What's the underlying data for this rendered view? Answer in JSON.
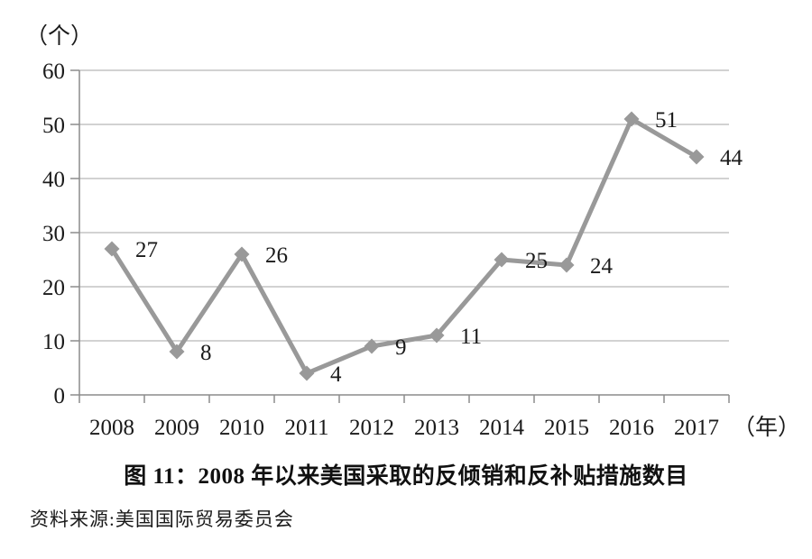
{
  "figure": {
    "title": "图 11：2008 年以来美国采取的反倾销和反补贴措施数目",
    "source": "资料来源:美国国际贸易委员会"
  },
  "chart_data": {
    "type": "line",
    "title": "图 11：2008 年以来美国采取的反倾销和反补贴措施数目",
    "source": "资料来源:美国国际贸易委员会",
    "categories": [
      "2008",
      "2009",
      "2010",
      "2011",
      "2012",
      "2013",
      "2014",
      "2015",
      "2016",
      "2017"
    ],
    "values": [
      27,
      8,
      26,
      4,
      9,
      11,
      25,
      24,
      51,
      44
    ],
    "data_labels": [
      "27",
      "8",
      "26",
      "4",
      "9",
      "11",
      "25",
      "24",
      "51",
      "44"
    ],
    "x_unit": "（年）",
    "y_unit": "（个）",
    "xlabel": "",
    "ylabel": "",
    "ylim": [
      0,
      60
    ],
    "yticks": [
      "0",
      "10",
      "20",
      "30",
      "40",
      "50",
      "60"
    ],
    "grid": "horizontal",
    "legend": "none",
    "marker": "diamond",
    "colors": {
      "line": "#999999",
      "grid": "#a6a6a6",
      "axis": "#8c8c8c",
      "text": "#1a1a1a"
    }
  }
}
